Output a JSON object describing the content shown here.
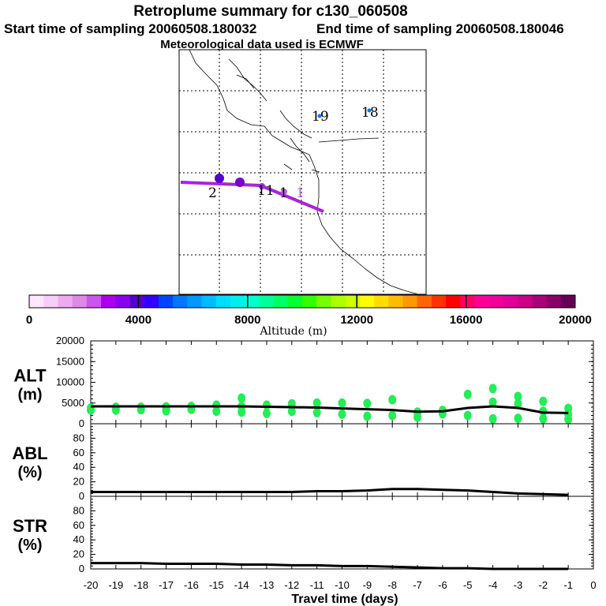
{
  "header": {
    "title": "Retroplume summary for c130_060508",
    "start_label": "Start time of sampling 20060508.180032",
    "end_label": "End time of sampling 20060508.180046",
    "met_label": "Meteorological data used is ECMWF"
  },
  "map": {
    "labels": [
      "19",
      "18",
      "2",
      "11",
      "1",
      "1"
    ],
    "track_color": "#aa22dd"
  },
  "colorbar": {
    "ticks": [
      "0",
      "4000",
      "8000",
      "12000",
      "16000",
      "20000"
    ],
    "title": "Altitude (m)",
    "colors": [
      "#ffe6ff",
      "#f7ccf7",
      "#eeaaee",
      "#e088e8",
      "#cc55ee",
      "#aa00ee",
      "#8800ee",
      "#5500cc",
      "#3300ff",
      "#0044ff",
      "#0077ff",
      "#0099ff",
      "#00bbff",
      "#00ddff",
      "#00eeee",
      "#00ffcc",
      "#00ff99",
      "#00ff66",
      "#00ff33",
      "#33ff00",
      "#77ff00",
      "#aaff00",
      "#ccff00",
      "#ffff00",
      "#ffdd00",
      "#ffbb00",
      "#ff9900",
      "#ff6600",
      "#ff3300",
      "#ff0000",
      "#ff0066",
      "#ff0099",
      "#ee0099",
      "#dd0099",
      "#cc0088",
      "#aa0077",
      "#880066",
      "#660055"
    ]
  },
  "chart_data": [
    {
      "type": "line",
      "panel": "ALT",
      "ylabel": "ALT\n(m)",
      "ylabel_line1": "ALT",
      "ylabel_line2": "(m)",
      "ylim": [
        0,
        20000
      ],
      "yticks": [
        "0",
        "5000",
        "10000",
        "15000",
        "20000"
      ],
      "xlim": [
        -20,
        0
      ],
      "x": [
        -20,
        -19,
        -18,
        -17,
        -16,
        -15,
        -14,
        -13,
        -12,
        -11,
        -10,
        -9,
        -8,
        -7,
        -6,
        -5,
        -4,
        -3,
        -2,
        -1
      ],
      "values": [
        4200,
        4200,
        4200,
        4200,
        4200,
        4200,
        4200,
        4100,
        4000,
        3900,
        3700,
        3500,
        3300,
        2900,
        3000,
        3800,
        4200,
        3800,
        2700,
        2600
      ],
      "scatter_color": "#22ee55",
      "scatter": [
        [
          -20,
          3800
        ],
        [
          -20,
          3300
        ],
        [
          -19,
          4000
        ],
        [
          -19,
          3300
        ],
        [
          -18,
          4000
        ],
        [
          -18,
          3400
        ],
        [
          -17,
          4100
        ],
        [
          -17,
          3500
        ],
        [
          -17,
          3100
        ],
        [
          -16,
          4200
        ],
        [
          -16,
          3500
        ],
        [
          -15,
          4500
        ],
        [
          -15,
          3000
        ],
        [
          -14,
          4200
        ],
        [
          -14,
          2800
        ],
        [
          -14,
          6200
        ],
        [
          -13,
          4500
        ],
        [
          -13,
          2500
        ],
        [
          -12,
          4800
        ],
        [
          -12,
          3000
        ],
        [
          -11,
          5000
        ],
        [
          -11,
          2700
        ],
        [
          -10,
          5000
        ],
        [
          -10,
          2300
        ],
        [
          -9,
          4900
        ],
        [
          -9,
          1800
        ],
        [
          -8,
          5800
        ],
        [
          -8,
          2000
        ],
        [
          -7,
          2800
        ],
        [
          -7,
          1600
        ],
        [
          -6,
          3200
        ],
        [
          -6,
          2400
        ],
        [
          -5,
          7100
        ],
        [
          -5,
          2000
        ],
        [
          -4,
          8500
        ],
        [
          -4,
          5200
        ],
        [
          -4,
          1200
        ],
        [
          -3,
          6600
        ],
        [
          -3,
          4800
        ],
        [
          -3,
          1300
        ],
        [
          -2,
          5400
        ],
        [
          -2,
          3000
        ],
        [
          -2,
          1200
        ],
        [
          -1,
          3700
        ],
        [
          -1,
          2300
        ],
        [
          -1,
          1100
        ]
      ]
    },
    {
      "type": "line",
      "panel": "ABL",
      "ylabel_line1": "ABL",
      "ylabel_line2": "(%)",
      "ylim": [
        0,
        100
      ],
      "yticks": [
        "0",
        "20",
        "40",
        "60",
        "80"
      ],
      "xlim": [
        -20,
        0
      ],
      "x": [
        -20,
        -19,
        -18,
        -17,
        -16,
        -15,
        -14,
        -13,
        -12,
        -11,
        -10,
        -9,
        -8,
        -7,
        -6,
        -5,
        -4,
        -3,
        -2,
        -1
      ],
      "values": [
        6,
        6,
        6,
        6,
        6,
        6,
        6,
        6,
        6,
        7,
        7,
        8,
        10,
        10,
        9,
        8,
        6,
        4,
        3,
        2
      ]
    },
    {
      "type": "line",
      "panel": "STR",
      "ylabel_line1": "STR",
      "ylabel_line2": "(%)",
      "ylim": [
        0,
        100
      ],
      "yticks": [
        "0",
        "20",
        "40",
        "60",
        "80"
      ],
      "xlim": [
        -20,
        0
      ],
      "x": [
        -20,
        -19,
        -18,
        -17,
        -16,
        -15,
        -14,
        -13,
        -12,
        -11,
        -10,
        -9,
        -8,
        -7,
        -6,
        -5,
        -4,
        -3,
        -2,
        -1
      ],
      "values": [
        8,
        8,
        8,
        7,
        7,
        7,
        6,
        6,
        5,
        5,
        4,
        4,
        3,
        2,
        1,
        1,
        0,
        0,
        0,
        0
      ]
    }
  ],
  "xaxis": {
    "ticks": [
      "-20",
      "-19",
      "-18",
      "-17",
      "-16",
      "-15",
      "-14",
      "-13",
      "-12",
      "-11",
      "-10",
      "-9",
      "-8",
      "-7",
      "-6",
      "-5",
      "-4",
      "-3",
      "-2",
      "-1",
      "0"
    ],
    "label": "Travel time (days)"
  }
}
